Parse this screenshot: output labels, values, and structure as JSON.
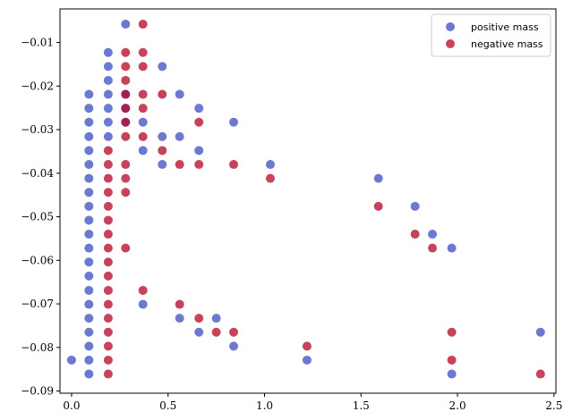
{
  "chart_data": {
    "type": "scatter",
    "title": "",
    "xlabel": "",
    "ylabel": "",
    "xlim": [
      -0.06,
      2.51
    ],
    "ylim": [
      -0.0905,
      -0.0023
    ],
    "x_ticks": [
      0.0,
      0.5,
      1.0,
      1.5,
      2.0,
      2.5
    ],
    "x_tick_labels": [
      "0.0",
      "0.5",
      "1.0",
      "1.5",
      "2.0",
      "2.5"
    ],
    "y_ticks": [
      -0.01,
      -0.02,
      -0.03,
      -0.04,
      -0.05,
      -0.06,
      -0.07,
      -0.08,
      -0.09
    ],
    "y_tick_labels": [
      "−0.01",
      "−0.02",
      "−0.03",
      "−0.04",
      "−0.05",
      "−0.06",
      "−0.07",
      "−0.08",
      "−0.09"
    ],
    "grid": false,
    "legend_position": "top-right",
    "series": [
      {
        "name": "positive mass",
        "color": "#3b4cc0",
        "points": [
          [
            0.28,
            -0.0058
          ],
          [
            0.19,
            -0.0123
          ],
          [
            0.19,
            -0.0155
          ],
          [
            0.19,
            -0.0187
          ],
          [
            0.19,
            -0.0219
          ],
          [
            0.19,
            -0.0251
          ],
          [
            0.19,
            -0.0283
          ],
          [
            0.19,
            -0.0316
          ],
          [
            0.09,
            -0.0219
          ],
          [
            0.09,
            -0.0251
          ],
          [
            0.09,
            -0.0283
          ],
          [
            0.09,
            -0.0316
          ],
          [
            0.09,
            -0.0348
          ],
          [
            0.09,
            -0.038
          ],
          [
            0.09,
            -0.0412
          ],
          [
            0.09,
            -0.0444
          ],
          [
            0.09,
            -0.0476
          ],
          [
            0.09,
            -0.0508
          ],
          [
            0.09,
            -0.054
          ],
          [
            0.09,
            -0.0572
          ],
          [
            0.09,
            -0.0604
          ],
          [
            0.09,
            -0.0636
          ],
          [
            0.09,
            -0.0669
          ],
          [
            0.09,
            -0.0701
          ],
          [
            0.09,
            -0.0733
          ],
          [
            0.09,
            -0.0765
          ],
          [
            0.09,
            -0.0797
          ],
          [
            0.09,
            -0.0829
          ],
          [
            0.09,
            -0.0861
          ],
          [
            0.0,
            -0.0829
          ],
          [
            0.28,
            -0.0219
          ],
          [
            0.28,
            -0.0251
          ],
          [
            0.28,
            -0.0283
          ],
          [
            0.37,
            -0.0283
          ],
          [
            0.37,
            -0.0348
          ],
          [
            0.37,
            -0.0701
          ],
          [
            0.47,
            -0.0155
          ],
          [
            0.47,
            -0.0316
          ],
          [
            0.47,
            -0.038
          ],
          [
            0.56,
            -0.0219
          ],
          [
            0.56,
            -0.0316
          ],
          [
            0.56,
            -0.0733
          ],
          [
            0.66,
            -0.0251
          ],
          [
            0.66,
            -0.0348
          ],
          [
            0.66,
            -0.0765
          ],
          [
            0.75,
            -0.0733
          ],
          [
            0.84,
            -0.0283
          ],
          [
            0.84,
            -0.0797
          ],
          [
            1.03,
            -0.038
          ],
          [
            1.22,
            -0.0829
          ],
          [
            1.59,
            -0.0412
          ],
          [
            1.78,
            -0.0476
          ],
          [
            1.87,
            -0.054
          ],
          [
            1.97,
            -0.0572
          ],
          [
            1.97,
            -0.0861
          ],
          [
            2.43,
            -0.0765
          ]
        ]
      },
      {
        "name": "negative mass",
        "color": "#b40426",
        "points": [
          [
            0.37,
            -0.0058
          ],
          [
            0.28,
            -0.0123
          ],
          [
            0.28,
            -0.0155
          ],
          [
            0.28,
            -0.0187
          ],
          [
            0.28,
            -0.0219
          ],
          [
            0.28,
            -0.0251
          ],
          [
            0.28,
            -0.0283
          ],
          [
            0.28,
            -0.0316
          ],
          [
            0.28,
            -0.038
          ],
          [
            0.28,
            -0.0412
          ],
          [
            0.28,
            -0.0444
          ],
          [
            0.28,
            -0.0572
          ],
          [
            0.37,
            -0.0123
          ],
          [
            0.37,
            -0.0155
          ],
          [
            0.37,
            -0.0219
          ],
          [
            0.37,
            -0.0251
          ],
          [
            0.37,
            -0.0316
          ],
          [
            0.37,
            -0.0669
          ],
          [
            0.19,
            -0.0348
          ],
          [
            0.19,
            -0.038
          ],
          [
            0.19,
            -0.0412
          ],
          [
            0.19,
            -0.0444
          ],
          [
            0.19,
            -0.0476
          ],
          [
            0.19,
            -0.0508
          ],
          [
            0.19,
            -0.054
          ],
          [
            0.19,
            -0.0572
          ],
          [
            0.19,
            -0.0604
          ],
          [
            0.19,
            -0.0636
          ],
          [
            0.19,
            -0.0669
          ],
          [
            0.19,
            -0.0701
          ],
          [
            0.19,
            -0.0733
          ],
          [
            0.19,
            -0.0765
          ],
          [
            0.19,
            -0.0797
          ],
          [
            0.19,
            -0.0829
          ],
          [
            0.19,
            -0.0861
          ],
          [
            0.47,
            -0.0219
          ],
          [
            0.47,
            -0.0348
          ],
          [
            0.56,
            -0.038
          ],
          [
            0.56,
            -0.0701
          ],
          [
            0.66,
            -0.0283
          ],
          [
            0.66,
            -0.038
          ],
          [
            0.66,
            -0.0733
          ],
          [
            0.75,
            -0.0765
          ],
          [
            0.84,
            -0.038
          ],
          [
            0.84,
            -0.0765
          ],
          [
            1.03,
            -0.0412
          ],
          [
            1.22,
            -0.0797
          ],
          [
            1.59,
            -0.0476
          ],
          [
            1.78,
            -0.054
          ],
          [
            1.87,
            -0.0572
          ],
          [
            1.97,
            -0.0765
          ],
          [
            1.97,
            -0.0829
          ],
          [
            2.43,
            -0.0861
          ]
        ]
      }
    ]
  }
}
